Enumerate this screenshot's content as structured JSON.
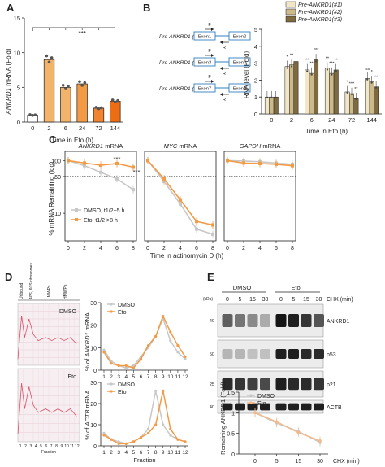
{
  "panels": {
    "A": {
      "label": "A",
      "ylabel_gene": "ANKRD1",
      "ylabel_rest": " mRNA (Fold)",
      "xlabel": "Time in Eto (h)",
      "sig": "***"
    },
    "B": {
      "label": "B",
      "ylabel": "RNA level (Fold)",
      "xlabel": "Time in Eto (h)",
      "legend": [
        "Pre-ANKRD1(#1)",
        "Pre-ANKRD1(#2)",
        "Pre-ANKRD1(#3)"
      ],
      "schematic": [
        {
          "label": "Pre-ANKRD1 (#1)",
          "exon_a": "Exon1",
          "exon_b": "Exon2"
        },
        {
          "label": "Pre-ANKRD1 (#2)",
          "exon_a": "Exon3",
          "exon_b": "Exon4"
        },
        {
          "label": "Pre-ANKRD1 (#3)",
          "exon_a": "Exon7",
          "exon_b": "Exon8"
        }
      ],
      "primer_f": "F",
      "primer_r": "R"
    },
    "C": {
      "label": "C",
      "titles": [
        {
          "gene": "ANKRD1",
          "rest": " mRNA"
        },
        {
          "gene": "MYC",
          "rest": " mRNA"
        },
        {
          "gene": "GAPDH",
          "rest": " mRNA"
        }
      ],
      "ylabel": "% mRNA Remaining (log)",
      "xlabel": "Time in actinomycin D (h)",
      "legend": [
        "DMSO, t1/2~5 h",
        "Eto, t1/2 >8 h"
      ],
      "sig": "***"
    },
    "D": {
      "label": "D",
      "gel_header": [
        "Unbound",
        "40S, 60S ribosomes",
        "LMWPs",
        "HMWPs"
      ],
      "gel_labels": [
        "DMSO",
        "Eto"
      ],
      "gel_xlabel": "Fraction",
      "ylabel_top_gene": "ANKRD1",
      "ylabel_bottom_gene": "ACTB",
      "ylabel_prefix": "% of ",
      "ylabel_suffix": " mRNA",
      "xlabel": "Fraction",
      "legend": [
        "DMSO",
        "Eto"
      ]
    },
    "E": {
      "label": "E",
      "groups": [
        "DMSO",
        "Eto"
      ],
      "chx_label": "CHX (min)",
      "chx_times": [
        "0",
        "5",
        "15",
        "30",
        "0",
        "5",
        "15",
        "30"
      ],
      "kda": "(kDa)",
      "bands": [
        "ANKRD1",
        "p53",
        "p21",
        "ACTB"
      ],
      "markers": [
        "40",
        "50",
        "25",
        "40"
      ],
      "ylabel": "Remaining ANKRD1 (Fold)",
      "xlabel": "CHX (min)",
      "legend": [
        "DMSO",
        "Eto"
      ]
    }
  },
  "chart_data": [
    {
      "panel": "A",
      "type": "bar",
      "categories": [
        "0",
        "2",
        "6",
        "24",
        "72",
        "144"
      ],
      "values": [
        1.0,
        9.0,
        5.0,
        5.5,
        2.0,
        3.0
      ],
      "colors": [
        "#ffffff",
        "#f2b36a",
        "#f2b36a",
        "#f39a45",
        "#f08430",
        "#ec6d14"
      ],
      "ylim": [
        0,
        15
      ],
      "yticks": [
        0,
        5,
        10,
        15
      ]
    },
    {
      "panel": "B",
      "type": "bar",
      "categories": [
        "0",
        "2",
        "6",
        "24",
        "72",
        "144"
      ],
      "series": [
        {
          "name": "Pre-ANKRD1(#1)",
          "values": [
            1.0,
            2.8,
            2.6,
            2.7,
            1.3,
            2.1
          ],
          "color": "#f1e6c6"
        },
        {
          "name": "Pre-ANKRD1(#2)",
          "values": [
            1.0,
            2.9,
            2.4,
            2.4,
            1.2,
            1.9
          ],
          "color": "#cdb98a"
        },
        {
          "name": "Pre-ANKRD1(#3)",
          "values": [
            1.0,
            3.1,
            3.2,
            2.6,
            0.9,
            1.6
          ],
          "color": "#7d6a3f"
        }
      ],
      "sig_labels": [
        "*",
        "**",
        "*",
        "**",
        "**",
        "***",
        "**",
        "***",
        "**",
        "*",
        "***",
        "**",
        "ns",
        "*",
        "**",
        "**",
        "**"
      ],
      "ylim": [
        0,
        5
      ],
      "yticks": [
        0,
        1,
        2,
        3,
        4,
        5
      ]
    },
    {
      "panel": "C",
      "type": "line",
      "x": [
        0,
        2,
        4,
        6,
        8
      ],
      "xticks": [
        0,
        2,
        4,
        6,
        8
      ],
      "yticks": [
        10,
        50,
        100
      ],
      "subplots": [
        {
          "title": "ANKRD1 mRNA",
          "series": [
            {
              "name": "DMSO, t1/2~5 h",
              "values": [
                100,
                80,
                60,
                45,
                28
              ],
              "color": "#c8c8c8"
            },
            {
              "name": "Eto, t1/2 >8 h",
              "values": [
                100,
                90,
                82,
                88,
                75
              ],
              "color": "#f39a45"
            }
          ],
          "dashed_line": 50
        },
        {
          "title": "MYC mRNA",
          "series": [
            {
              "name": "DMSO",
              "values": [
                100,
                40,
                15,
                5,
                4
              ],
              "color": "#c8c8c8"
            },
            {
              "name": "Eto",
              "values": [
                100,
                45,
                18,
                7,
                6
              ],
              "color": "#f39a45"
            }
          ],
          "dashed_line": 50
        },
        {
          "title": "GAPDH mRNA",
          "series": [
            {
              "name": "DMSO",
              "values": [
                100,
                98,
                95,
                90,
                85
              ],
              "color": "#c8c8c8"
            },
            {
              "name": "Eto",
              "values": [
                100,
                90,
                88,
                85,
                80
              ],
              "color": "#f39a45"
            }
          ],
          "dashed_line": 50
        }
      ]
    },
    {
      "panel": "D",
      "type": "line",
      "x": [
        1,
        2,
        3,
        4,
        5,
        6,
        7,
        8,
        9,
        10,
        11,
        12
      ],
      "subplots": [
        {
          "gene": "ANKRD1",
          "series": [
            {
              "name": "DMSO",
              "values": [
                9,
                4,
                2,
                1,
                2,
                6,
                10,
                15,
                23,
                13,
                8,
                5
              ],
              "color": "#c8c8c8"
            },
            {
              "name": "Eto",
              "values": [
                8,
                3,
                2,
                2,
                1,
                5,
                11,
                15,
                24,
                17,
                11,
                6
              ],
              "color": "#f39a45"
            }
          ],
          "ylim": [
            0,
            30
          ],
          "yticks": [
            0,
            10,
            20,
            30
          ]
        },
        {
          "gene": "ACTB",
          "series": [
            {
              "name": "DMSO",
              "values": [
                6,
                3,
                2,
                1,
                2,
                4,
                8,
                26,
                10,
                5,
                3,
                2
              ],
              "color": "#c8c8c8"
            },
            {
              "name": "Eto",
              "values": [
                5,
                3,
                1,
                1,
                2,
                4,
                6,
                10,
                26,
                8,
                3,
                2
              ],
              "color": "#f39a45"
            }
          ],
          "ylim": [
            0,
            30
          ],
          "yticks": [
            0,
            10,
            20,
            30
          ]
        }
      ]
    },
    {
      "panel": "E",
      "type": "line",
      "x": [
        0,
        5,
        15,
        30
      ],
      "series": [
        {
          "name": "DMSO",
          "values": [
            1.0,
            0.75,
            0.55,
            0.28
          ],
          "color": "#c8c8c8"
        },
        {
          "name": "Eto",
          "values": [
            1.0,
            0.78,
            0.52,
            0.32
          ],
          "color": "#f3b98a"
        }
      ],
      "ylim": [
        0,
        1.5
      ],
      "yticks": [
        0,
        0.5,
        1,
        1.5
      ]
    }
  ]
}
